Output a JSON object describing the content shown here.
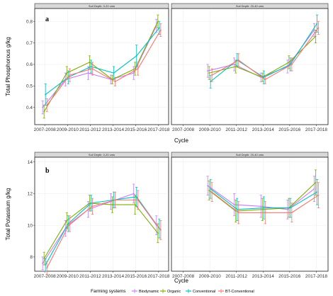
{
  "chart_data": [
    {
      "type": "line",
      "panel_label": "a",
      "ylabel": "Total Phosphorous g/kg",
      "xlabel": "Cycle",
      "ylim": [
        0.32,
        0.86
      ],
      "yticks": [
        0.4,
        0.5,
        0.6,
        0.7,
        0.8
      ],
      "facets": [
        {
          "strip": "Soil Depth: 0-20 cms",
          "categories": [
            "2007-2008",
            "2009-2010",
            "2011-2012",
            "2013-2014",
            "2015-2016",
            "2017-2018"
          ],
          "series": [
            {
              "name": "Biodynamic",
              "values": [
                0.4,
                0.53,
                0.56,
                0.53,
                0.56,
                0.78
              ],
              "err": [
                0.03,
                0.03,
                0.03,
                0.02,
                0.03,
                0.03
              ]
            },
            {
              "name": "Organic",
              "values": [
                0.38,
                0.56,
                0.61,
                0.53,
                0.58,
                0.8
              ],
              "err": [
                0.03,
                0.03,
                0.03,
                0.02,
                0.03,
                0.03
              ]
            },
            {
              "name": "Conventional",
              "values": [
                0.46,
                0.54,
                0.59,
                0.56,
                0.64,
                0.77
              ],
              "err": [
                0.05,
                0.03,
                0.03,
                0.03,
                0.05,
                0.03
              ]
            },
            {
              "name": "BT-Conventional",
              "values": [
                0.41,
                0.55,
                0.58,
                0.52,
                0.58,
                0.76
              ],
              "err": [
                0.03,
                0.03,
                0.03,
                0.02,
                0.03,
                0.03
              ]
            }
          ]
        },
        {
          "strip": "Soil Depth: 20-40 cms",
          "categories": [
            "2007-2008",
            "2009-2010",
            "2011-2012",
            "2013-2014",
            "2015-2016",
            "2017-2018"
          ],
          "series": [
            {
              "name": "Biodynamic",
              "values": [
                null,
                0.57,
                0.6,
                0.54,
                0.59,
                0.76
              ],
              "err": [
                null,
                0.03,
                0.03,
                0.02,
                0.03,
                0.03
              ]
            },
            {
              "name": "Organic",
              "values": [
                null,
                0.56,
                0.59,
                0.54,
                0.61,
                0.73
              ],
              "err": [
                null,
                0.03,
                0.03,
                0.02,
                0.03,
                0.03
              ]
            },
            {
              "name": "Conventional",
              "values": [
                null,
                0.52,
                0.62,
                0.54,
                0.6,
                0.79
              ],
              "err": [
                null,
                0.03,
                0.03,
                0.03,
                0.03,
                0.04
              ]
            },
            {
              "name": "BT-Conventional",
              "values": [
                null,
                0.55,
                0.62,
                0.53,
                0.6,
                0.77
              ],
              "err": [
                null,
                0.03,
                0.03,
                0.02,
                0.03,
                0.03
              ]
            }
          ]
        }
      ]
    },
    {
      "type": "line",
      "panel_label": "b",
      "ylabel": "Total Potassium g/kg",
      "xlabel": "Cycle",
      "ylim": [
        7.1,
        14.3
      ],
      "yticks": [
        8,
        10,
        12,
        14
      ],
      "facets": [
        {
          "strip": "Soil Depth: 0-20 cms",
          "categories": [
            "2007-2008",
            "2009-2010",
            "2011-2012",
            "2013-2014",
            "2015-2016",
            "2017-2018"
          ],
          "series": [
            {
              "name": "Biodynamic",
              "values": [
                7.6,
                9.8,
                11.0,
                11.5,
                12.0,
                10.0
              ],
              "err": [
                0.4,
                0.5,
                0.5,
                0.5,
                0.6,
                0.6
              ]
            },
            {
              "name": "Organic",
              "values": [
                7.9,
                10.3,
                11.4,
                11.3,
                11.3,
                9.5
              ],
              "err": [
                0.4,
                0.5,
                0.5,
                0.5,
                0.6,
                0.6
              ]
            },
            {
              "name": "Conventional",
              "values": [
                7.5,
                10.1,
                11.4,
                11.6,
                11.8,
                9.8
              ],
              "err": [
                0.4,
                0.5,
                0.5,
                0.5,
                0.6,
                0.6
              ]
            },
            {
              "name": "BT-Conventional",
              "values": [
                7.3,
                10.1,
                11.2,
                11.6,
                11.6,
                9.7
              ],
              "err": [
                0.4,
                0.5,
                0.5,
                0.5,
                0.6,
                0.6
              ]
            }
          ]
        },
        {
          "strip": "Soil Depth: 20-40 cms",
          "categories": [
            "2007-2008",
            "2009-2010",
            "2011-2012",
            "2013-2014",
            "2015-2016",
            "2017-2018"
          ],
          "series": [
            {
              "name": "Biodynamic",
              "values": [
                null,
                12.5,
                11.3,
                11.2,
                11.0,
                12.3
              ],
              "err": [
                null,
                0.6,
                0.7,
                0.7,
                0.6,
                0.8
              ]
            },
            {
              "name": "Organic",
              "values": [
                null,
                12.2,
                10.9,
                11.0,
                11.1,
                12.7
              ],
              "err": [
                null,
                0.6,
                0.7,
                0.7,
                0.6,
                0.8
              ]
            },
            {
              "name": "Conventional",
              "values": [
                null,
                12.3,
                11.0,
                11.1,
                11.1,
                12.1
              ],
              "err": [
                null,
                0.6,
                0.7,
                0.7,
                0.6,
                0.8
              ]
            },
            {
              "name": "BT-Conventional",
              "values": [
                null,
                12.1,
                10.8,
                10.8,
                10.8,
                11.9
              ],
              "err": [
                null,
                0.6,
                0.7,
                0.7,
                0.6,
                0.8
              ]
            }
          ]
        }
      ]
    }
  ],
  "legend": {
    "title": "Farming systems",
    "entries": [
      "Biodynamic",
      "Organic",
      "Conventional",
      "BT-Conventional"
    ],
    "position": "bottom"
  },
  "colors": {
    "Biodynamic": "#c77cff",
    "Organic": "#7cae00",
    "Conventional": "#00bfc4",
    "BT-Conventional": "#f8766d"
  }
}
